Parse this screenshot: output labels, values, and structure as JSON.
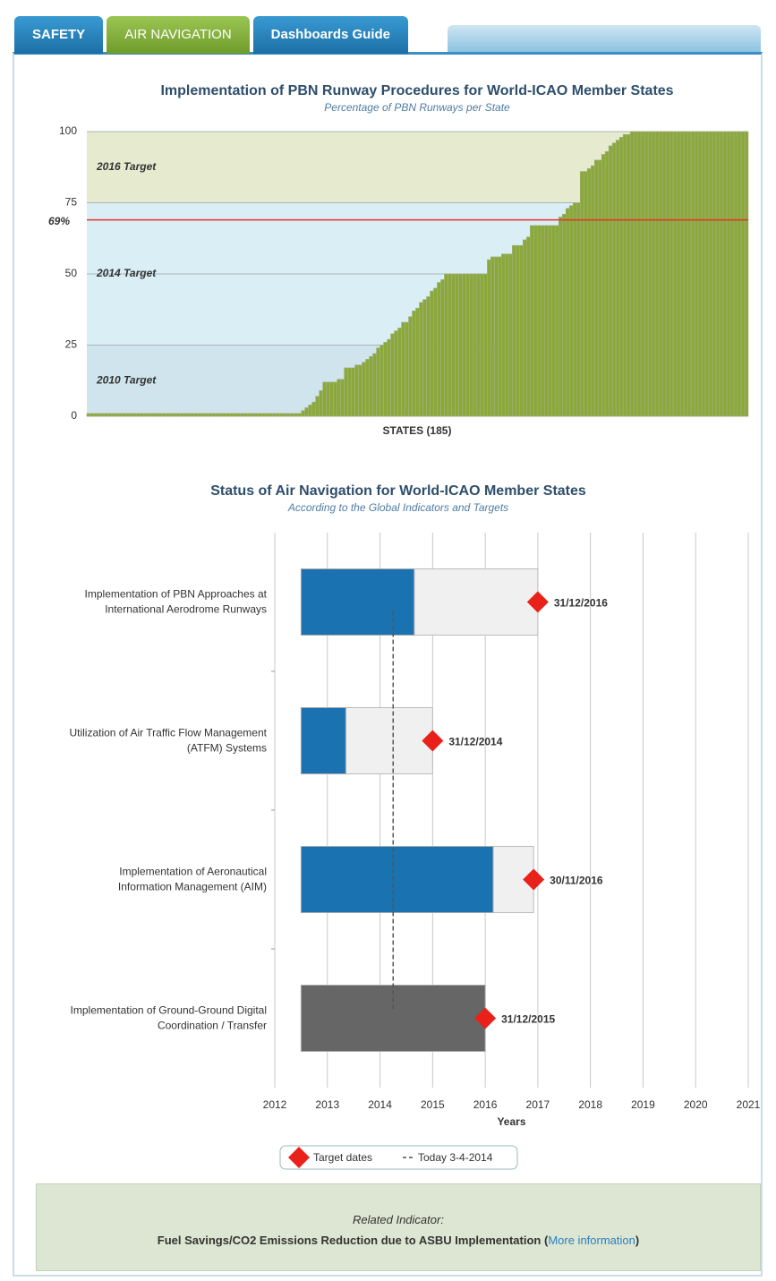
{
  "tabs": [
    "SAFETY",
    "AIR NAVIGATION",
    "Dashboards Guide"
  ],
  "chart_data": [
    {
      "type": "bar",
      "title": "Implementation of PBN Runway Procedures for World-ICAO Member States",
      "subtitle": "Percentage of PBN Runways per State",
      "xlabel": "STATES (185)",
      "color": "#8aa83c",
      "ylim": [
        0,
        100
      ],
      "yticks": [
        0,
        25,
        50,
        75,
        100
      ],
      "grid": true,
      "bands": [
        {
          "label": "2010 Target",
          "range": [
            0,
            25
          ],
          "color": "#cfe4ec"
        },
        {
          "label": "2014 Target",
          "range": [
            25,
            75
          ],
          "color": "#d9eff5"
        },
        {
          "label": "2016 Target",
          "range": [
            75,
            100
          ],
          "color": "#e6ebd0"
        }
      ],
      "reference_line": {
        "value": 69,
        "label": "69%",
        "color": "#e8312a"
      },
      "values": [
        1,
        1,
        1,
        1,
        1,
        1,
        1,
        1,
        1,
        1,
        1,
        1,
        1,
        1,
        1,
        1,
        1,
        1,
        1,
        1,
        1,
        1,
        1,
        1,
        1,
        1,
        1,
        1,
        1,
        1,
        1,
        1,
        1,
        1,
        1,
        1,
        1,
        1,
        1,
        1,
        1,
        1,
        1,
        1,
        1,
        1,
        1,
        1,
        1,
        1,
        1,
        1,
        1,
        1,
        1,
        1,
        1,
        1,
        1,
        1,
        2,
        3,
        4,
        5,
        7,
        9,
        12,
        12,
        12,
        12,
        13,
        13,
        17,
        17,
        17,
        18,
        18,
        19,
        20,
        21,
        22,
        24,
        25,
        26,
        27,
        29,
        30,
        31,
        33,
        33,
        35,
        37,
        38,
        40,
        41,
        42,
        44,
        45,
        47,
        48,
        50,
        50,
        50,
        50,
        50,
        50,
        50,
        50,
        50,
        50,
        50,
        50,
        55,
        56,
        56,
        56,
        57,
        57,
        57,
        60,
        60,
        60,
        62,
        63,
        67,
        67,
        67,
        67,
        67,
        67,
        67,
        67,
        70,
        71,
        73,
        74,
        75,
        75,
        86,
        86,
        87,
        88,
        90,
        90,
        92,
        93,
        95,
        96,
        97,
        98,
        99,
        99,
        100,
        100,
        100,
        100,
        100,
        100,
        100,
        100,
        100,
        100,
        100,
        100,
        100,
        100,
        100,
        100,
        100,
        100,
        100,
        100,
        100,
        100,
        100,
        100,
        100,
        100,
        100,
        100,
        100,
        100,
        100,
        100,
        100
      ]
    },
    {
      "type": "gantt",
      "title": "Status of Air Navigation for World-ICAO Member States",
      "subtitle": "According to the Global Indicators and Targets",
      "xlabel": "Years",
      "xlim": [
        2012,
        2021
      ],
      "xticks": [
        2012,
        2013,
        2014,
        2015,
        2016,
        2017,
        2018,
        2019,
        2020,
        2021
      ],
      "grid": true,
      "today": {
        "value": 2014.25,
        "label": "Today 3-4-2014"
      },
      "target_legend": "Target dates",
      "target_color": "#e8221a",
      "tasks": [
        {
          "label": [
            "Implementation of PBN Approaches at",
            "International Aerodrome Runways"
          ],
          "start": 2012.5,
          "progress": 2014.65,
          "target": 2017.0,
          "target_label": "31/12/2016",
          "color": "#1a73b0"
        },
        {
          "label": [
            "Utilization of Air Traffic Flow Management",
            "(ATFM) Systems"
          ],
          "start": 2012.5,
          "progress": 2013.35,
          "target": 2015.0,
          "target_label": "31/12/2014",
          "color": "#1a73b0"
        },
        {
          "label": [
            "Implementation of Aeronautical",
            "Information Management (AIM)"
          ],
          "start": 2012.5,
          "progress": 2016.15,
          "target": 2016.92,
          "target_label": "30/11/2016",
          "color": "#1a73b0"
        },
        {
          "label": [
            "Implementation of Ground-Ground Digital",
            "Coordination / Transfer"
          ],
          "start": 2012.5,
          "progress": 2016.0,
          "target": 2016.0,
          "target_label": "31/12/2015",
          "color": "#666666"
        }
      ]
    }
  ],
  "footer": {
    "related": "Related Indicator:",
    "text": "Fuel Savings/CO2 Emissions Reduction due to ASBU Implementation",
    "open": "(",
    "link": "More information",
    "close": ")"
  }
}
